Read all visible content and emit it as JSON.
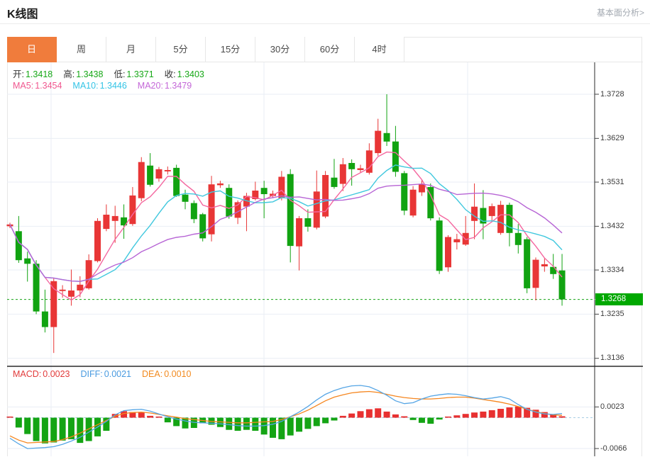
{
  "header": {
    "title": "K线图",
    "link_label": "基本面分析>"
  },
  "tabs": [
    {
      "label": "日",
      "active": true
    },
    {
      "label": "周",
      "active": false
    },
    {
      "label": "月",
      "active": false
    },
    {
      "label": "5分",
      "active": false
    },
    {
      "label": "15分",
      "active": false
    },
    {
      "label": "30分",
      "active": false
    },
    {
      "label": "60分",
      "active": false
    },
    {
      "label": "4时",
      "active": false
    }
  ],
  "quote_bar": {
    "ohlc": [
      {
        "label": "开:",
        "value": "1.3418"
      },
      {
        "label": "高:",
        "value": "1.3438"
      },
      {
        "label": "低:",
        "value": "1.3371"
      },
      {
        "label": "收:",
        "value": "1.3403"
      }
    ],
    "ohlc_value_color": "#17a817",
    "ma": [
      {
        "label": "MA5:",
        "value": "1.3454",
        "color": "#f0578f"
      },
      {
        "label": "MA10:",
        "value": "1.3446",
        "color": "#33c4e6"
      },
      {
        "label": "MA20:",
        "value": "1.3479",
        "color": "#c468d8"
      }
    ]
  },
  "macd_bar": [
    {
      "label": "MACD:",
      "value": "0.0023",
      "color": "#e23b3b"
    },
    {
      "label": "DIFF:",
      "value": "0.0021",
      "color": "#4a9be0"
    },
    {
      "label": "DEA:",
      "value": "0.0010",
      "color": "#f28a1e"
    }
  ],
  "price_axis": {
    "tick_labels": [
      "1.3728",
      "1.3629",
      "1.3531",
      "1.3432",
      "1.3334",
      "1.3235",
      "1.3136"
    ],
    "badge": {
      "value": "1.3268",
      "bg": "#00a800"
    }
  },
  "macd_axis": {
    "tick_labels": [
      "0.0023",
      "-0.0066"
    ]
  },
  "chart_data": [
    {
      "type": "candlestick",
      "title": "K线图 日线",
      "ylim": [
        1.3136,
        1.3728
      ],
      "y_ticks": [
        1.3728,
        1.3629,
        1.3531,
        1.3432,
        1.3334,
        1.3235,
        1.3136
      ],
      "last_price": 1.3268,
      "grid": true,
      "up_color": "#e83636",
      "down_color": "#11a311",
      "last_price_line_color": "#15a315",
      "ma_periods": [
        5,
        10,
        20
      ],
      "ma_colors": [
        "#f4679f",
        "#41c8de",
        "#b765d5"
      ],
      "candles_ohlc": [
        [
          1.3432,
          1.344,
          1.3428,
          1.3436
        ],
        [
          1.3421,
          1.3455,
          1.335,
          1.3356
        ],
        [
          1.336,
          1.3375,
          1.3308,
          1.3348
        ],
        [
          1.3348,
          1.3356,
          1.3235,
          1.3241
        ],
        [
          1.3241,
          1.329,
          1.3194,
          1.3206
        ],
        [
          1.3206,
          1.3315,
          1.3148,
          1.3309
        ],
        [
          1.3287,
          1.33,
          1.3272,
          1.329
        ],
        [
          1.3274,
          1.3335,
          1.3254,
          1.3288
        ],
        [
          1.3288,
          1.332,
          1.3273,
          1.3301
        ],
        [
          1.3293,
          1.3369,
          1.329,
          1.3356
        ],
        [
          1.3354,
          1.345,
          1.3351,
          1.3444
        ],
        [
          1.3426,
          1.3481,
          1.3421,
          1.3458
        ],
        [
          1.3444,
          1.3478,
          1.3395,
          1.3455
        ],
        [
          1.3452,
          1.3481,
          1.3404,
          1.3434
        ],
        [
          1.3437,
          1.352,
          1.3433,
          1.3501
        ],
        [
          1.3495,
          1.3587,
          1.3488,
          1.3576
        ],
        [
          1.3568,
          1.3596,
          1.3521,
          1.3525
        ],
        [
          1.3539,
          1.3565,
          1.3532,
          1.356
        ],
        [
          1.3555,
          1.3566,
          1.3548,
          1.3558
        ],
        [
          1.3563,
          1.357,
          1.3498,
          1.35
        ],
        [
          1.3503,
          1.3514,
          1.347,
          1.3487
        ],
        [
          1.3484,
          1.349,
          1.3439,
          1.3448
        ],
        [
          1.3459,
          1.3462,
          1.3398,
          1.3405
        ],
        [
          1.3414,
          1.3545,
          1.3398,
          1.3526
        ],
        [
          1.3524,
          1.3534,
          1.3518,
          1.3528
        ],
        [
          1.3518,
          1.3526,
          1.3449,
          1.3454
        ],
        [
          1.3451,
          1.349,
          1.3437,
          1.3486
        ],
        [
          1.3476,
          1.3507,
          1.3421,
          1.35
        ],
        [
          1.3493,
          1.3532,
          1.349,
          1.3512
        ],
        [
          1.3518,
          1.3534,
          1.345,
          1.3504
        ],
        [
          1.35,
          1.3512,
          1.3496,
          1.3505
        ],
        [
          1.3495,
          1.3556,
          1.349,
          1.3543
        ],
        [
          1.3549,
          1.356,
          1.3351,
          1.3388
        ],
        [
          1.3387,
          1.3455,
          1.3333,
          1.345
        ],
        [
          1.345,
          1.347,
          1.342,
          1.3431
        ],
        [
          1.3429,
          1.3557,
          1.3425,
          1.351
        ],
        [
          1.3454,
          1.3556,
          1.345,
          1.3547
        ],
        [
          1.3541,
          1.3583,
          1.3516,
          1.352
        ],
        [
          1.3527,
          1.3585,
          1.3511,
          1.3571
        ],
        [
          1.3574,
          1.3582,
          1.3523,
          1.356
        ],
        [
          1.3558,
          1.357,
          1.3552,
          1.3562
        ],
        [
          1.3552,
          1.3618,
          1.3548,
          1.3602
        ],
        [
          1.3596,
          1.3673,
          1.359,
          1.3646
        ],
        [
          1.3641,
          1.3728,
          1.3612,
          1.3622
        ],
        [
          1.3622,
          1.3657,
          1.3543,
          1.3554
        ],
        [
          1.3551,
          1.3556,
          1.3457,
          1.3467
        ],
        [
          1.3456,
          1.3522,
          1.3452,
          1.3514
        ],
        [
          1.3508,
          1.3536,
          1.35,
          1.3526
        ],
        [
          1.352,
          1.3528,
          1.3445,
          1.345
        ],
        [
          1.3445,
          1.3452,
          1.3325,
          1.3332
        ],
        [
          1.334,
          1.3412,
          1.333,
          1.3408
        ],
        [
          1.3396,
          1.3415,
          1.338,
          1.3403
        ],
        [
          1.3391,
          1.3455,
          1.3388,
          1.3417
        ],
        [
          1.3444,
          1.3528,
          1.3403,
          1.3476
        ],
        [
          1.3473,
          1.3513,
          1.3403,
          1.3438
        ],
        [
          1.3455,
          1.3483,
          1.3445,
          1.3477
        ],
        [
          1.3417,
          1.3489,
          1.3413,
          1.348
        ],
        [
          1.348,
          1.3485,
          1.3387,
          1.3417
        ],
        [
          1.3417,
          1.3437,
          1.3371,
          1.339
        ],
        [
          1.3403,
          1.3408,
          1.3282,
          1.3293
        ],
        [
          1.3294,
          1.3362,
          1.3266,
          1.3357
        ],
        [
          1.3342,
          1.336,
          1.333,
          1.3347
        ],
        [
          1.3341,
          1.337,
          1.3314,
          1.3325
        ],
        [
          1.3333,
          1.337,
          1.3254,
          1.3268
        ]
      ]
    },
    {
      "type": "bar",
      "title": "MACD(12,26,9)",
      "y_ticks": [
        0.0023,
        -0.0066
      ],
      "pos_color": "#e83030",
      "neg_color": "#14a414",
      "diff_color": "#55a5e5",
      "dea_color": "#f5861f",
      "hist": [
        0.0001,
        -0.0021,
        -0.0035,
        -0.005,
        -0.0055,
        -0.0053,
        -0.0049,
        -0.0046,
        -0.0054,
        -0.005,
        -0.004,
        -0.0028,
        0.0008,
        0.0014,
        0.0012,
        0.0011,
        0.0004,
        0.0001,
        -0.001,
        -0.0018,
        -0.0023,
        -0.0022,
        -0.0012,
        -0.0015,
        -0.002,
        -0.0026,
        -0.0028,
        -0.0026,
        -0.0028,
        -0.0036,
        -0.0043,
        -0.0046,
        -0.0038,
        -0.003,
        -0.0024,
        -0.0018,
        -0.0012,
        -0.0006,
        0.0004,
        0.0009,
        0.0014,
        0.0018,
        0.002,
        0.0013,
        0.0007,
        0.0003,
        -0.0005,
        -0.0011,
        -0.0013,
        -0.0004,
        0.0002,
        0.0005,
        0.0008,
        0.0011,
        0.0013,
        0.0016,
        0.0019,
        0.0022,
        0.0024,
        0.0021,
        0.0017,
        0.0012,
        0.0007,
        0.0003
      ],
      "diff": [
        -0.0044,
        -0.0056,
        -0.0066,
        -0.0065,
        -0.0064,
        -0.0062,
        -0.0057,
        -0.005,
        -0.0042,
        -0.0031,
        -0.002,
        -0.0008,
        0.0006,
        0.0015,
        0.0017,
        0.0018,
        0.0014,
        0.0008,
        0.0002,
        -0.0003,
        -0.0007,
        -0.001,
        -0.0011,
        -0.0012,
        -0.0013,
        -0.0015,
        -0.0017,
        -0.0018,
        -0.0018,
        -0.0017,
        -0.0014,
        -0.0008,
        0.0002,
        0.0012,
        0.0024,
        0.0038,
        0.005,
        0.0058,
        0.0064,
        0.0068,
        0.0069,
        0.0066,
        0.0058,
        0.0048,
        0.0036,
        0.003,
        0.0032,
        0.004,
        0.0046,
        0.0049,
        0.0051,
        0.005,
        0.0047,
        0.0043,
        0.004,
        0.0042,
        0.0045,
        0.004,
        0.0028,
        0.0018,
        0.0012,
        0.0008,
        0.0007,
        0.0009
      ],
      "dea": [
        -0.0039,
        -0.0048,
        -0.0054,
        -0.0053,
        -0.0052,
        -0.0051,
        -0.0047,
        -0.0041,
        -0.0033,
        -0.0024,
        -0.0015,
        -0.0006,
        0.0003,
        0.0009,
        0.0011,
        0.0012,
        0.001,
        0.0007,
        0.0004,
        0.0001,
        -0.0002,
        -0.0004,
        -0.0006,
        -0.0008,
        -0.0009,
        -0.001,
        -0.0011,
        -0.0011,
        -0.001,
        -0.0009,
        -0.0008,
        -0.0004,
        0.0002,
        0.0008,
        0.0016,
        0.0026,
        0.0036,
        0.0044,
        0.0049,
        0.0053,
        0.0055,
        0.0056,
        0.0054,
        0.005,
        0.0046,
        0.0043,
        0.0041,
        0.004,
        0.004,
        0.0041,
        0.0043,
        0.0044,
        0.0044,
        0.0042,
        0.0039,
        0.0036,
        0.0033,
        0.0029,
        0.0024,
        0.0018,
        0.0013,
        0.0009,
        0.0006,
        0.0005
      ]
    }
  ]
}
